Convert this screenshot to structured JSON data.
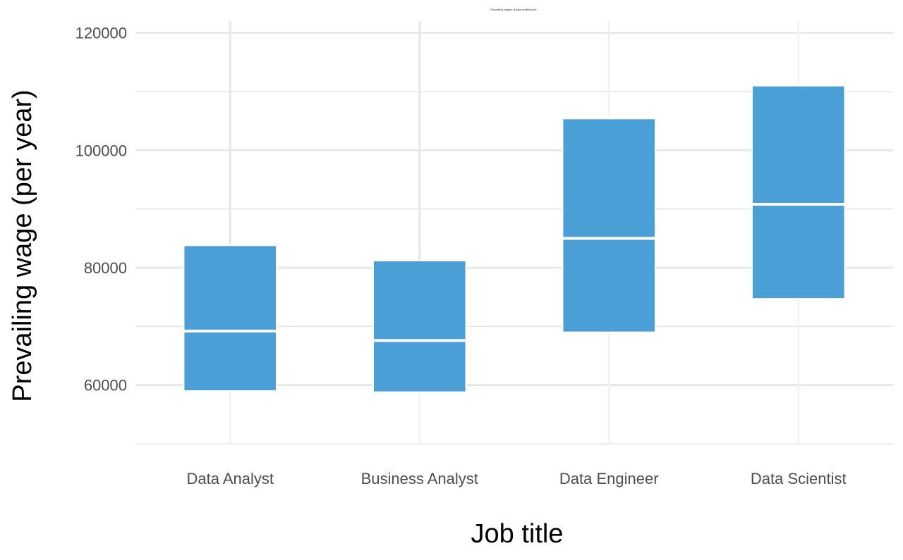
{
  "chart_data": {
    "type": "boxplot",
    "title": "Prevailing wages of data related jobs",
    "xlabel": "Job title",
    "ylabel": "Prevailing wage (per year)",
    "ylim": [
      50000,
      122000
    ],
    "yticks": [
      60000,
      80000,
      100000,
      120000
    ],
    "ytick_labels": [
      "60000",
      "80000",
      "100000",
      "120000"
    ],
    "grid": true,
    "categories": [
      "Data Analyst",
      "Business Analyst",
      "Data Engineer",
      "Data Scientist"
    ],
    "boxes": [
      {
        "category": "Data Analyst",
        "q1": 59000,
        "median": 69200,
        "q3": 83800,
        "whisker_high": 122000
      },
      {
        "category": "Business Analyst",
        "q1": 58800,
        "median": 67600,
        "q3": 81200,
        "whisker_high": 122000
      },
      {
        "category": "Data Engineer",
        "q1": 69000,
        "median": 85000,
        "q3": 105400,
        "whisker_high": null
      },
      {
        "category": "Data Scientist",
        "q1": 74700,
        "median": 90800,
        "q3": 111000,
        "whisker_high": null
      }
    ],
    "colors": {
      "box_fill": "#4aa0d6",
      "median_line": "#ffffff",
      "grid_major": "#e5e5e5",
      "grid_minor": "#f2f2f2",
      "whisker": "#e6e6e6",
      "tick_text": "#4d4d4d",
      "axis_title": "#000000"
    }
  }
}
